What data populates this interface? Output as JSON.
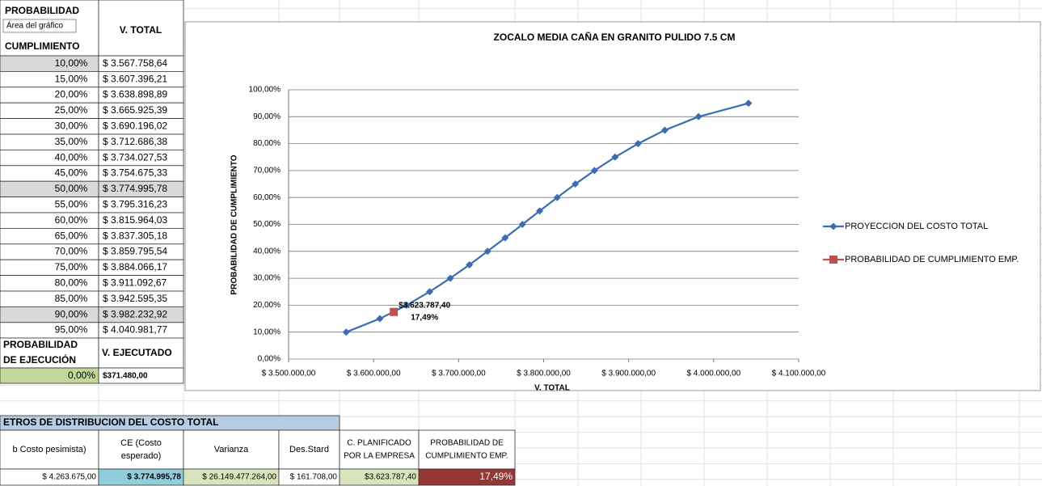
{
  "tooltip": "Área del gráfico",
  "table": {
    "header": {
      "probability": [
        "PROBABILIDAD",
        "CUMPLIMIENTO"
      ],
      "total": "V. TOTAL"
    },
    "rows": [
      [
        "10,00%",
        "$ 3.567.758,64"
      ],
      [
        "15,00%",
        "$ 3.607.396,21"
      ],
      [
        "20,00%",
        "$ 3.638.898,89"
      ],
      [
        "25,00%",
        "$ 3.665.925,39"
      ],
      [
        "30,00%",
        "$ 3.690.196,02"
      ],
      [
        "35,00%",
        "$ 3.712.686,38"
      ],
      [
        "40,00%",
        "$ 3.734.027,53"
      ],
      [
        "45,00%",
        "$ 3.754.675,33"
      ],
      [
        "50,00%",
        "$ 3.774.995,78"
      ],
      [
        "55,00%",
        "$ 3.795.316,23"
      ],
      [
        "60,00%",
        "$ 3.815.964,03"
      ],
      [
        "65,00%",
        "$ 3.837.305,18"
      ],
      [
        "70,00%",
        "$ 3.859.795,54"
      ],
      [
        "75,00%",
        "$ 3.884.066,17"
      ],
      [
        "80,00%",
        "$ 3.911.092,67"
      ],
      [
        "85,00%",
        "$ 3.942.595,35"
      ],
      [
        "90,00%",
        "$ 3.982.232,92"
      ],
      [
        "95,00%",
        "$ 4.040.981,77"
      ]
    ],
    "exec_header": {
      "probability": [
        "PROBABILIDAD",
        "DE EJECUCIÓN"
      ],
      "executed": "V. EJECUTADO"
    },
    "exec_row": [
      "0,00%",
      "$371.480,00"
    ]
  },
  "params": {
    "title": "ETROS DE DISTRIBUCION DEL COSTO TOTAL",
    "headers": [
      [
        "b Costo pesimista)"
      ],
      [
        "CE (Costo",
        "esperado)"
      ],
      [
        "Varianza"
      ],
      [
        "Des.Stard"
      ],
      [
        "C. PLANIFICADO",
        "POR LA EMPRESA"
      ],
      [
        "PROBABILIDAD DE",
        "CUMPLIMIENTO EMP."
      ]
    ],
    "values": [
      "$ 4.263.675,00",
      "$ 3.774.995,78",
      "$ 26.149.477.264,00",
      "$ 161.708,00",
      "$3.623.787,40",
      "17,49%"
    ]
  },
  "chart_data": {
    "type": "line",
    "title": "ZOCALO MEDIA CAÑA EN GRANITO PULIDO 7.5 CM",
    "x_label": "V. TOTAL",
    "y_label": "PROBABILIDAD  DE  CUMPLIMIENTO",
    "xlim": [
      3500000,
      4100000
    ],
    "ylim": [
      0,
      100
    ],
    "xticks": [
      {
        "value": 3500000,
        "label": "$ 3.500.000,00"
      },
      {
        "value": 3600000,
        "label": "$ 3.600.000,00"
      },
      {
        "value": 3700000,
        "label": "$ 3.700.000,00"
      },
      {
        "value": 3800000,
        "label": "$ 3.800.000,00"
      },
      {
        "value": 3900000,
        "label": "$ 3.900.000,00"
      },
      {
        "value": 4000000,
        "label": "$ 4.000.000,00"
      },
      {
        "value": 4100000,
        "label": "$ 4.100.000,00"
      }
    ],
    "yticks": [
      {
        "value": 0,
        "label": "0,00%"
      },
      {
        "value": 10,
        "label": "10,00%"
      },
      {
        "value": 20,
        "label": "20,00%"
      },
      {
        "value": 30,
        "label": "30,00%"
      },
      {
        "value": 40,
        "label": "40,00%"
      },
      {
        "value": 50,
        "label": "50,00%"
      },
      {
        "value": 60,
        "label": "60,00%"
      },
      {
        "value": 70,
        "label": "70,00%"
      },
      {
        "value": 80,
        "label": "80,00%"
      },
      {
        "value": 90,
        "label": "90,00%"
      },
      {
        "value": 100,
        "label": "100,00%"
      }
    ],
    "grid": true,
    "legend": "right",
    "series": [
      {
        "name": "PROYECCION DEL COSTO TOTAL",
        "color": "#3b6cb0",
        "x": [
          3567758.64,
          3607396.21,
          3638898.89,
          3665925.39,
          3690196.02,
          3712686.38,
          3734027.53,
          3754675.33,
          3774995.78,
          3795316.23,
          3815964.03,
          3837305.18,
          3859795.54,
          3884066.17,
          3911092.67,
          3942595.35,
          3982232.92,
          4040981.77
        ],
        "values": [
          10,
          15,
          20,
          25,
          30,
          35,
          40,
          45,
          50,
          55,
          60,
          65,
          70,
          75,
          80,
          85,
          90,
          95
        ]
      },
      {
        "name": "PROBABILIDAD DE CUMPLIMIENTO EMP.",
        "color": "#c0504d",
        "x": [
          3623787.4
        ],
        "values": [
          17.49
        ],
        "x_labels": [
          "$3.623.787,40"
        ],
        "value_labels": [
          "17,49%"
        ]
      }
    ]
  }
}
